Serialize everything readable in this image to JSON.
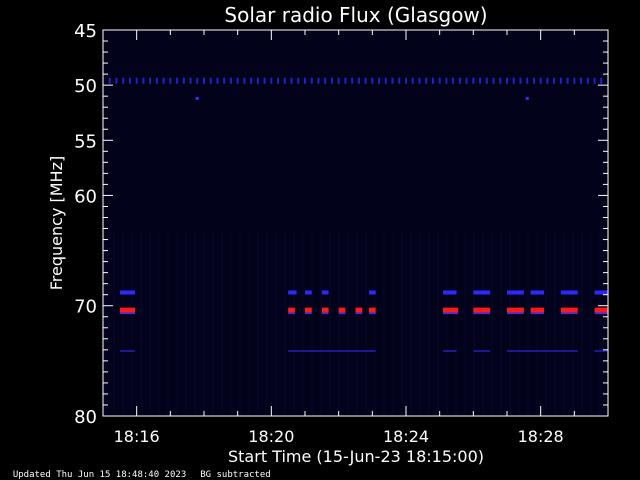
{
  "chart_data": {
    "type": "heatmap",
    "title": "Solar radio Flux (Glasgow)",
    "xlabel": "Start Time (15-Jun-23 18:15:00)",
    "ylabel": "Frequency [MHz]",
    "x_ticks": [
      "18:16",
      "18:20",
      "18:24",
      "18:28"
    ],
    "x_tick_minutes": [
      16,
      20,
      24,
      28
    ],
    "x_range_minutes": [
      15.0,
      30.0
    ],
    "y_ticks": [
      45,
      50,
      55,
      60,
      70,
      80
    ],
    "y_range": [
      45,
      80
    ],
    "background": "#02021a",
    "axis_color": "#ffffff",
    "bands": [
      {
        "freq": 49.6,
        "color": "#2222cc",
        "segments": "ticks",
        "x_start": 15.2,
        "x_end": 29.9,
        "step": 0.2
      },
      {
        "freq": 68.8,
        "color": "#2a2aff",
        "segments": [
          [
            15.5,
            15.95
          ],
          [
            20.5,
            20.75
          ],
          [
            21.0,
            21.2
          ],
          [
            21.5,
            21.7
          ],
          [
            22.9,
            23.1
          ],
          [
            25.1,
            25.5
          ],
          [
            26.0,
            26.5
          ],
          [
            27.0,
            27.5
          ],
          [
            27.7,
            28.1
          ],
          [
            28.6,
            29.1
          ],
          [
            29.6,
            30.0
          ]
        ]
      },
      {
        "freq": 70.4,
        "color": "#ff1a1a",
        "segments": [
          [
            15.5,
            15.95
          ],
          [
            20.5,
            20.7
          ],
          [
            21.0,
            21.2
          ],
          [
            21.5,
            21.7
          ],
          [
            22.0,
            22.2
          ],
          [
            22.5,
            22.7
          ],
          [
            22.9,
            23.1
          ],
          [
            25.1,
            25.55
          ],
          [
            26.0,
            26.5
          ],
          [
            27.0,
            27.5
          ],
          [
            27.7,
            28.1
          ],
          [
            28.6,
            29.1
          ],
          [
            29.6,
            30.0
          ]
        ]
      },
      {
        "freq": 74.2,
        "color": "#1a1a99",
        "segments": [
          [
            15.5,
            15.95
          ],
          [
            20.5,
            23.1
          ],
          [
            25.1,
            25.5
          ],
          [
            26.0,
            26.5
          ],
          [
            27.0,
            29.1
          ],
          [
            29.6,
            30.0
          ]
        ]
      }
    ],
    "dots": [
      {
        "x": 17.8,
        "freq": 51.2,
        "color": "#3333ff"
      },
      {
        "x": 27.6,
        "freq": 51.2,
        "color": "#3333ff"
      }
    ]
  },
  "footer": {
    "updated": "Updated Thu Jun 15 18:48:40 2023",
    "note": "BG subtracted"
  }
}
